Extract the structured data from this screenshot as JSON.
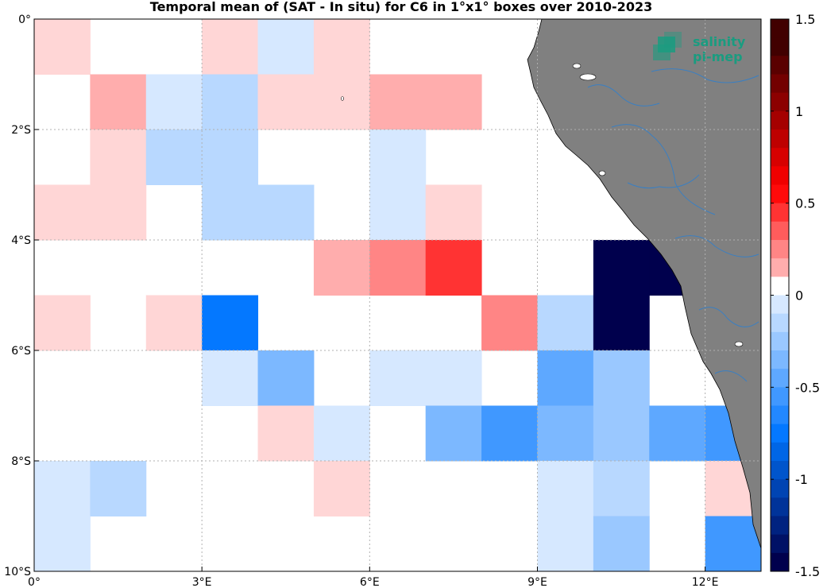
{
  "chart_data": {
    "type": "heatmap",
    "title": "Temporal mean of (SAT - In situ) for C6 in 1°x1° boxes over 2010-2023",
    "xlim": [
      0,
      13
    ],
    "ylim": [
      -10,
      0
    ],
    "x_ticks": [
      0,
      3,
      6,
      9,
      12
    ],
    "x_tick_labels": [
      "0°",
      "3°E",
      "6°E",
      "9°E",
      "12°E"
    ],
    "y_ticks": [
      0,
      -2,
      -4,
      -6,
      -8,
      -10
    ],
    "y_tick_labels": [
      "0°",
      "2°S",
      "4°S",
      "6°S",
      "8°S",
      "10°S"
    ],
    "grid": true,
    "colorbar": {
      "min": -1.5,
      "max": 1.5,
      "step": 0.1,
      "ticks": [
        1.5,
        1,
        0.5,
        0,
        -0.5,
        -1,
        -1.5
      ],
      "tick_labels": [
        "1.5",
        "1",
        "0.5",
        "0",
        "-0.5",
        "-1",
        "-1.5"
      ],
      "colors": [
        "#ffffff",
        "#ffd6d6",
        "#ffadad",
        "#ff8585",
        "#ff5c5c",
        "#ff3333",
        "#ff0a0a",
        "#f00000",
        "#d70000",
        "#be0000",
        "#a50000",
        "#8c0000",
        "#730000",
        "#5a0000",
        "#410000",
        "#d6e8ff",
        "#b8d8ff",
        "#9ac8ff",
        "#7cb8ff",
        "#5ea8ff",
        "#4098ff",
        "#2288ff",
        "#0478ff",
        "#0066e6",
        "#0055cc",
        "#0044b3",
        "#003399",
        "#002280",
        "#001166",
        "#00004d"
      ]
    },
    "cells": [
      {
        "lon": 0,
        "lat": 0,
        "value": 0.1
      },
      {
        "lon": 3,
        "lat": 0,
        "value": 0.1
      },
      {
        "lon": 4,
        "lat": 0,
        "value": -0.1
      },
      {
        "lon": 5,
        "lat": 0,
        "value": 0.1
      },
      {
        "lon": 1,
        "lat": -1,
        "value": 0.2
      },
      {
        "lon": 2,
        "lat": -1,
        "value": -0.1
      },
      {
        "lon": 3,
        "lat": -1,
        "value": -0.2
      },
      {
        "lon": 4,
        "lat": -1,
        "value": 0.1
      },
      {
        "lon": 5,
        "lat": -1,
        "value": 0.1
      },
      {
        "lon": 6,
        "lat": -1,
        "value": 0.2
      },
      {
        "lon": 7,
        "lat": -1,
        "value": 0.2
      },
      {
        "lon": 1,
        "lat": -2,
        "value": 0.1
      },
      {
        "lon": 2,
        "lat": -2,
        "value": -0.2
      },
      {
        "lon": 3,
        "lat": -2,
        "value": -0.2
      },
      {
        "lon": 6,
        "lat": -2,
        "value": -0.1
      },
      {
        "lon": 0,
        "lat": -3,
        "value": 0.1
      },
      {
        "lon": 1,
        "lat": -3,
        "value": 0.1
      },
      {
        "lon": 3,
        "lat": -3,
        "value": -0.2
      },
      {
        "lon": 4,
        "lat": -3,
        "value": -0.2
      },
      {
        "lon": 6,
        "lat": -3,
        "value": -0.1
      },
      {
        "lon": 7,
        "lat": -3,
        "value": 0.1
      },
      {
        "lon": 5,
        "lat": -4,
        "value": 0.2
      },
      {
        "lon": 6,
        "lat": -4,
        "value": 0.3
      },
      {
        "lon": 7,
        "lat": -4,
        "value": 0.5
      },
      {
        "lon": 10,
        "lat": -4,
        "value": -1.5
      },
      {
        "lon": 11,
        "lat": -4,
        "value": -1.5
      },
      {
        "lon": 0,
        "lat": -5,
        "value": 0.1
      },
      {
        "lon": 2,
        "lat": -5,
        "value": 0.1
      },
      {
        "lon": 3,
        "lat": -5,
        "value": -0.8
      },
      {
        "lon": 8,
        "lat": -5,
        "value": 0.3
      },
      {
        "lon": 9,
        "lat": -5,
        "value": -0.2
      },
      {
        "lon": 10,
        "lat": -5,
        "value": -1.5
      },
      {
        "lon": 3,
        "lat": -6,
        "value": -0.1
      },
      {
        "lon": 4,
        "lat": -6,
        "value": -0.4
      },
      {
        "lon": 6,
        "lat": -6,
        "value": -0.1
      },
      {
        "lon": 7,
        "lat": -6,
        "value": -0.1
      },
      {
        "lon": 9,
        "lat": -6,
        "value": -0.5
      },
      {
        "lon": 10,
        "lat": -6,
        "value": -0.3
      },
      {
        "lon": 4,
        "lat": -7,
        "value": 0.1
      },
      {
        "lon": 5,
        "lat": -7,
        "value": -0.1
      },
      {
        "lon": 7,
        "lat": -7,
        "value": -0.4
      },
      {
        "lon": 8,
        "lat": -7,
        "value": -0.6
      },
      {
        "lon": 9,
        "lat": -7,
        "value": -0.4
      },
      {
        "lon": 10,
        "lat": -7,
        "value": -0.3
      },
      {
        "lon": 11,
        "lat": -7,
        "value": -0.5
      },
      {
        "lon": 12,
        "lat": -7,
        "value": -0.6
      },
      {
        "lon": 0,
        "lat": -8,
        "value": -0.1
      },
      {
        "lon": 1,
        "lat": -8,
        "value": -0.2
      },
      {
        "lon": 5,
        "lat": -8,
        "value": 0.1
      },
      {
        "lon": 9,
        "lat": -8,
        "value": -0.1
      },
      {
        "lon": 10,
        "lat": -8,
        "value": -0.2
      },
      {
        "lon": 12,
        "lat": -8,
        "value": 0.1
      },
      {
        "lon": 0,
        "lat": -9,
        "value": -0.1
      },
      {
        "lon": 9,
        "lat": -9,
        "value": -0.1
      },
      {
        "lon": 10,
        "lat": -9,
        "value": -0.3
      },
      {
        "lon": 12,
        "lat": -9,
        "value": -0.6
      }
    ]
  },
  "logo": {
    "line1": "salinity",
    "line2": "pi-mep"
  },
  "colors": {
    "land": "#808080",
    "rivers": "#3a7fc2",
    "grid": "#b0b0b0",
    "logo": "#1a9c80"
  }
}
